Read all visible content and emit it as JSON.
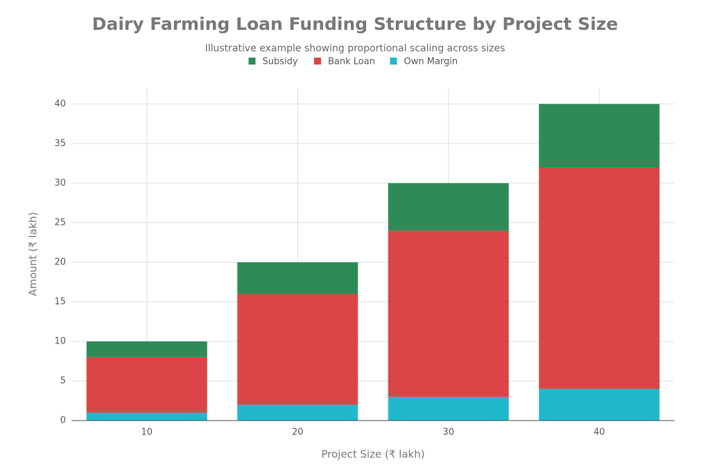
{
  "chart_data": {
    "type": "stacked-bar",
    "title": "Dairy Farming Loan Funding Structure by Project Size",
    "subtitle": "Illustrative example showing proportional scaling across sizes",
    "x_label": "Project Size (₹ lakh)",
    "y_label": "Amount (₹ lakh)",
    "x": [
      10,
      20,
      30,
      40
    ],
    "series": [
      {
        "name": "Subsidy",
        "color": "#2e8b57",
        "values": [
          2,
          4,
          6,
          8
        ]
      },
      {
        "name": "Bank Loan",
        "color": "#db4545",
        "values": [
          7,
          14,
          21,
          28
        ]
      },
      {
        "name": "Own Margin",
        "color": "#1fb8cd",
        "values": [
          1,
          2,
          3,
          4
        ]
      }
    ],
    "xlim": [
      5,
      45
    ],
    "xticks": [
      10,
      20,
      30,
      40
    ],
    "ylim": [
      0,
      42
    ],
    "yticks": [
      0,
      5,
      10,
      15,
      20,
      25,
      30,
      35,
      40
    ],
    "bar_width": 8,
    "grid": true,
    "legend": "top"
  }
}
